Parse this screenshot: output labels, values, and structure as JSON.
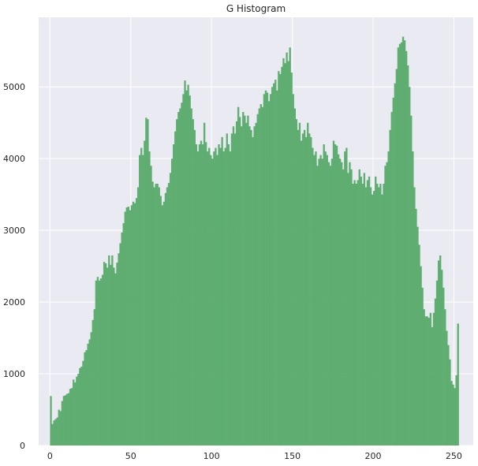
{
  "chart_data": {
    "type": "bar",
    "title": "G Histogram",
    "xlabel": "",
    "ylabel": "",
    "xlim": [
      -7,
      262
    ],
    "ylim": [
      0,
      5970
    ],
    "grid": true,
    "bar_color": "#55a868",
    "background_color": "#eaeaf2",
    "xticks": [
      0,
      50,
      100,
      150,
      200,
      250
    ],
    "xtick_labels": [
      "0",
      "50",
      "100",
      "150",
      "200",
      "250"
    ],
    "yticks": [
      0,
      1000,
      2000,
      3000,
      4000,
      5000
    ],
    "ytick_labels": [
      "0",
      "1000",
      "2000",
      "3000",
      "4000",
      "5000"
    ],
    "bins_start": 0,
    "bin_width": 1,
    "values": [
      690,
      300,
      350,
      370,
      390,
      500,
      480,
      620,
      690,
      700,
      720,
      730,
      790,
      800,
      920,
      880,
      960,
      1000,
      1080,
      1100,
      1180,
      1300,
      1330,
      1420,
      1480,
      1580,
      1750,
      1900,
      2300,
      2350,
      2300,
      2330,
      2380,
      2560,
      2540,
      2480,
      2650,
      2520,
      2650,
      2480,
      2400,
      2550,
      2680,
      2820,
      2970,
      3100,
      3260,
      3320,
      3330,
      3280,
      3350,
      3400,
      3380,
      3450,
      3600,
      4050,
      4150,
      4050,
      4250,
      4570,
      4550,
      4100,
      3900,
      3680,
      3600,
      3650,
      3650,
      3600,
      3480,
      3350,
      3400,
      3520,
      3600,
      3660,
      3800,
      4000,
      4200,
      4380,
      4550,
      4650,
      4700,
      4780,
      4900,
      5090,
      4950,
      5030,
      4880,
      4700,
      4550,
      4400,
      4200,
      4100,
      4200,
      4250,
      4200,
      4500,
      4230,
      4100,
      4150,
      4050,
      4000,
      4100,
      4150,
      4050,
      4200,
      4150,
      4300,
      4100,
      4150,
      4350,
      4200,
      4100,
      4350,
      4450,
      4350,
      4520,
      4720,
      4580,
      4450,
      4650,
      4600,
      4500,
      4600,
      4450,
      4400,
      4300,
      4450,
      4500,
      4620,
      4700,
      4760,
      4720,
      4900,
      4950,
      4920,
      4800,
      4900,
      5000,
      5050,
      5100,
      4950,
      5220,
      5180,
      5280,
      5400,
      5330,
      5480,
      5360,
      5550,
      5200,
      4900,
      4700,
      4550,
      4400,
      4500,
      4250,
      4350,
      4400,
      4300,
      4500,
      4350,
      4300,
      4150,
      4050,
      4100,
      3900,
      4000,
      4050,
      4000,
      4200,
      4100,
      4050,
      3950,
      3900,
      4000,
      4250,
      4200,
      4180,
      4060,
      4000,
      3950,
      3850,
      4100,
      4150,
      3800,
      3950,
      3850,
      3650,
      3700,
      3650,
      3700,
      3850,
      3750,
      3650,
      3800,
      3600,
      3700,
      3750,
      3600,
      3500,
      3550,
      3750,
      3650,
      3600,
      3650,
      3500,
      3650,
      3900,
      3950,
      4100,
      4400,
      4650,
      4850,
      5050,
      5250,
      5550,
      5600,
      5620,
      5700,
      5650,
      5500,
      5300,
      5000,
      4600,
      4100,
      3600,
      3300,
      3050,
      2800,
      2500,
      2200,
      1900,
      1800,
      1800,
      1780,
      1850,
      1650,
      1850,
      2050,
      2300,
      2580,
      2650,
      2450,
      2200,
      1900,
      1600,
      1400,
      1200,
      900,
      850,
      800,
      980,
      1700
    ]
  }
}
